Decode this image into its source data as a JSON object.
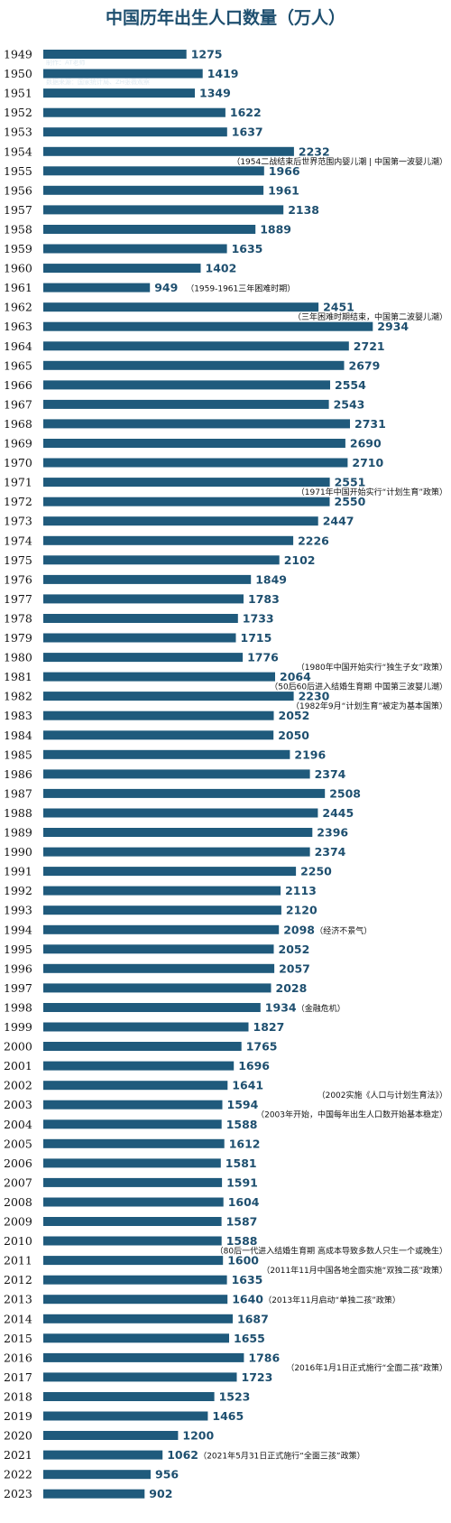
{
  "colors": {
    "bar": "#1f5a7c",
    "title": "#1e4f6f",
    "value_text": "#1e4f6f",
    "year_text": "#111111"
  },
  "chart_data": {
    "type": "bar",
    "orientation": "horizontal",
    "title": "中国历年出生人口数量（万人）",
    "credits": [
      "制作：AT老师",
      "数据来源：国家统计局、ZH张薇观察"
    ],
    "categories": [
      "1949",
      "1950",
      "1951",
      "1952",
      "1953",
      "1954",
      "1955",
      "1956",
      "1957",
      "1958",
      "1959",
      "1960",
      "1961",
      "1962",
      "1963",
      "1964",
      "1965",
      "1966",
      "1967",
      "1968",
      "1969",
      "1970",
      "1971",
      "1972",
      "1973",
      "1974",
      "1975",
      "1976",
      "1977",
      "1978",
      "1979",
      "1980",
      "1981",
      "1982",
      "1983",
      "1984",
      "1985",
      "1986",
      "1987",
      "1988",
      "1989",
      "1990",
      "1991",
      "1992",
      "1993",
      "1994",
      "1995",
      "1996",
      "1997",
      "1998",
      "1999",
      "2000",
      "2001",
      "2002",
      "2003",
      "2004",
      "2005",
      "2006",
      "2007",
      "2008",
      "2009",
      "2010",
      "2011",
      "2012",
      "2013",
      "2014",
      "2015",
      "2016",
      "2017",
      "2018",
      "2019",
      "2020",
      "2021",
      "2022",
      "2023"
    ],
    "values": [
      1275,
      1419,
      1349,
      1622,
      1637,
      2232,
      1966,
      1961,
      2138,
      1889,
      1635,
      1402,
      949,
      2451,
      2934,
      2721,
      2679,
      2554,
      2543,
      2731,
      2690,
      2710,
      2551,
      2550,
      2447,
      2226,
      2102,
      1849,
      1783,
      1733,
      1715,
      1776,
      2064,
      2230,
      2052,
      2050,
      2196,
      2374,
      2508,
      2445,
      2396,
      2374,
      2250,
      2113,
      2120,
      2098,
      2052,
      2057,
      2028,
      1934,
      1827,
      1765,
      1696,
      1641,
      1594,
      1588,
      1612,
      1581,
      1591,
      1604,
      1587,
      1588,
      1600,
      1635,
      1640,
      1687,
      1655,
      1786,
      1723,
      1523,
      1465,
      1200,
      1062,
      956,
      902
    ],
    "annotations": [
      {
        "year": "1954",
        "text": "（1954二战结束后世界范围内婴儿潮 | 中国第一波婴儿潮）",
        "placement": "below"
      },
      {
        "year": "1961",
        "text": "（1959-1961三年困难时期）",
        "placement": "inline"
      },
      {
        "year": "1962",
        "text": "（三年困难时期结束，中国第二波婴儿潮）",
        "placement": "below"
      },
      {
        "year": "1971",
        "text": "（1971年中国开始实行“计划生育”政策）",
        "placement": "below"
      },
      {
        "year": "1980",
        "text": "（1980年中国开始实行“独生子女”政策）",
        "placement": "below"
      },
      {
        "year": "1981",
        "text": "（50后60后进入结婚生育期 中国第三波婴儿潮）",
        "placement": "below"
      },
      {
        "year": "1982",
        "text": "（1982年9月“计划生育”被定为基本国策）",
        "placement": "below"
      },
      {
        "year": "1994",
        "text": "（经济不景气）",
        "placement": "inline"
      },
      {
        "year": "1998",
        "text": "（金融危机）",
        "placement": "inline"
      },
      {
        "year": "2002",
        "text": "（2002实施《人口与计划生育法》）",
        "placement": "below"
      },
      {
        "year": "2003",
        "text": "（2003年开始，中国每年出生人口数开始基本稳定）",
        "placement": "below"
      },
      {
        "year": "2010",
        "text": "（80后一代进入结婚生育期 高成本导致多数人只生一个或晚生）",
        "placement": "below"
      },
      {
        "year": "2011",
        "text": "（2011年11月中国各地全面实施“双独二孩”政策）",
        "placement": "below"
      },
      {
        "year": "2013",
        "text": "（2013年11月启动“单独二孩”政策）",
        "placement": "inline"
      },
      {
        "year": "2016",
        "text": "（2016年1月1日正式施行“全面二孩”政策）",
        "placement": "below"
      },
      {
        "year": "2021",
        "text": "（2021年5月31日正式施行“全面三孩”政策）",
        "placement": "inline"
      }
    ]
  }
}
